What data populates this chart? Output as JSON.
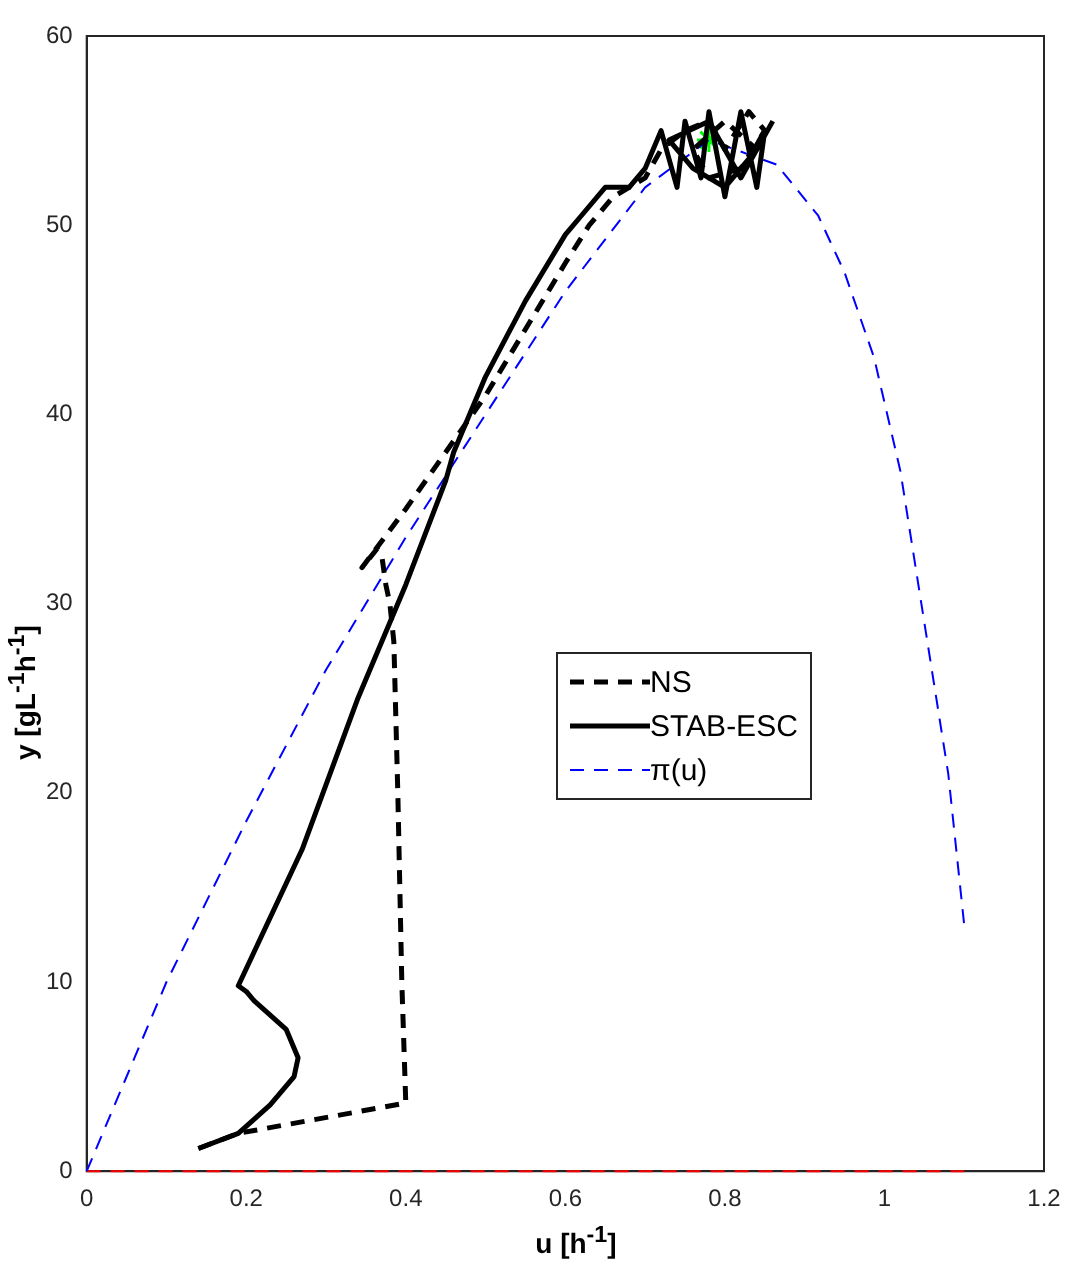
{
  "chart_data": {
    "type": "line",
    "xlabel": "u [h$^{-1}$]",
    "ylabel": "y [gL$^{-1}$h$^{-1}$]",
    "xlim": [
      0,
      1.2
    ],
    "ylim": [
      0,
      60
    ],
    "xticks": [
      0,
      0.2,
      0.4,
      0.6,
      0.8,
      1,
      1.2
    ],
    "yticks": [
      0,
      10,
      20,
      30,
      40,
      50,
      60
    ],
    "grid": false,
    "legend": "right",
    "series": [
      {
        "name": "NS",
        "type": "line",
        "color": "#000000",
        "line_style": "dashed",
        "marker": "none",
        "x": [
          0.14,
          0.19,
          0.4,
          0.395,
          0.39,
          0.385,
          0.38,
          0.375,
          0.37,
          0.364,
          0.345,
          0.4,
          0.45,
          0.5,
          0.55,
          0.6,
          0.63,
          0.66,
          0.7,
          0.72,
          0.75,
          0.78,
          0.8,
          0.83,
          0.85,
          0.82,
          0.78,
          0.76,
          0.8,
          0.84
        ],
        "values": [
          1.2,
          2,
          3.6,
          10,
          20,
          28,
          30,
          31,
          32.5,
          32.9,
          31.9,
          35,
          38,
          41,
          44.5,
          48,
          50,
          51.5,
          52.5,
          54,
          55,
          55.5,
          54,
          56,
          55,
          53,
          52.5,
          54,
          55.5,
          54
        ]
      },
      {
        "name": "STAB-ESC",
        "type": "line",
        "color": "#000000",
        "line_style": "solid",
        "marker": "none",
        "x": [
          0.14,
          0.19,
          0.23,
          0.26,
          0.265,
          0.25,
          0.21,
          0.2,
          0.19,
          0.27,
          0.34,
          0.35,
          0.4,
          0.45,
          0.46,
          0.5,
          0.55,
          0.6,
          0.62,
          0.65,
          0.68,
          0.7,
          0.72,
          0.74,
          0.75,
          0.77,
          0.78,
          0.8,
          0.82,
          0.84,
          0.85,
          0.83,
          0.8,
          0.76,
          0.73,
          0.78,
          0.82,
          0.86
        ],
        "values": [
          1.2,
          2,
          3.5,
          5,
          6,
          7.5,
          9,
          9.5,
          9.8,
          17,
          25,
          26,
          31,
          36.5,
          38,
          42,
          46,
          49.5,
          50.5,
          52,
          52,
          53,
          55,
          52,
          55.5,
          52.5,
          56,
          51.5,
          56,
          52,
          55,
          53.5,
          52,
          53,
          54.5,
          55.5,
          52.5,
          55.5
        ]
      },
      {
        "name": "π(u)",
        "type": "line",
        "color": "#0000ff",
        "line_style": "dashed",
        "marker": "none",
        "x": [
          0,
          0.1,
          0.2,
          0.3,
          0.4,
          0.5,
          0.6,
          0.7,
          0.78,
          0.865,
          0.917,
          0.95,
          0.987,
          1.02,
          1.05,
          1.08,
          1.1
        ],
        "values": [
          0,
          10,
          18.5,
          26.5,
          33.5,
          40,
          46.5,
          52,
          54.5,
          53.2,
          50.5,
          47.5,
          43,
          37,
          29,
          21,
          13
        ]
      },
      {
        "type": "line",
        "color": "#ff0000",
        "line_style": "dashed",
        "marker": "none",
        "x": [
          0,
          1.1
        ],
        "values": [
          0,
          0
        ]
      },
      {
        "type": "scatter",
        "color": "#00ff00",
        "marker": "cross",
        "x": [
          0.78
        ],
        "values": [
          54.5
        ]
      }
    ]
  }
}
